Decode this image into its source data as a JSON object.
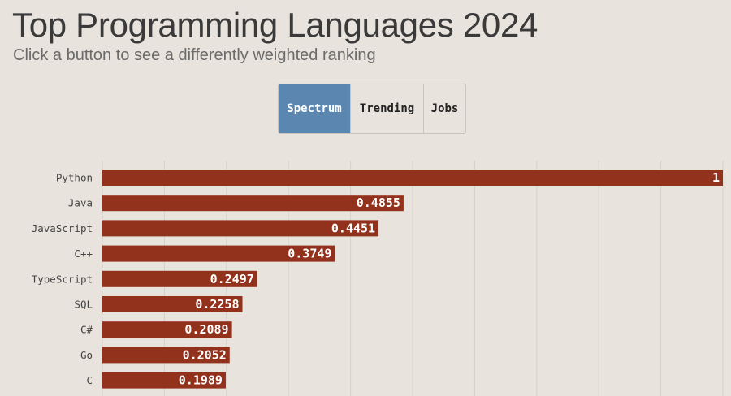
{
  "header": {
    "title": "Top Programming Languages 2024",
    "subtitle": "Click a button to see a differently weighted ranking"
  },
  "tabs": [
    {
      "label": "Spectrum",
      "active": true
    },
    {
      "label": "Trending",
      "active": false
    },
    {
      "label": "Jobs",
      "active": false
    }
  ],
  "colors": {
    "bar": "#92321c",
    "active_tab": "#5b86b0",
    "background": "#e8e3dc",
    "grid": "#d6d1ca"
  },
  "chart_data": {
    "type": "bar",
    "orientation": "horizontal",
    "title": "Top Programming Languages 2024",
    "subtitle": "Click a button to see a differently weighted ranking",
    "categories": [
      "Python",
      "Java",
      "JavaScript",
      "C++",
      "TypeScript",
      "SQL",
      "C#",
      "Go",
      "C"
    ],
    "values": [
      1,
      0.4855,
      0.4451,
      0.3749,
      0.2497,
      0.2258,
      0.2089,
      0.2052,
      0.1989
    ],
    "value_labels": [
      "1",
      "0.4855",
      "0.4451",
      "0.3749",
      "0.2497",
      "0.2258",
      "0.2089",
      "0.2052",
      "0.1989"
    ],
    "xlim": [
      0,
      1
    ],
    "grid": true
  }
}
